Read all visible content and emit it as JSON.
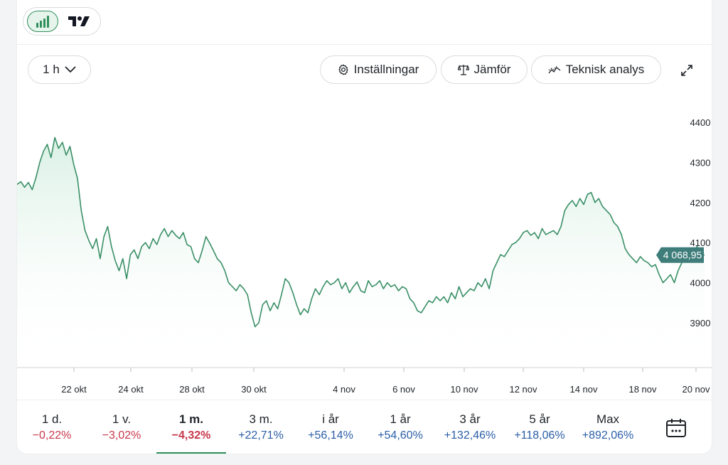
{
  "toolbar": {
    "interval_label": "1 h",
    "settings_label": "Inställningar",
    "compare_label": "Jämför",
    "technical_label": "Teknisk analys"
  },
  "chart_data": {
    "type": "line",
    "x_labels": [
      "22 okt",
      "24 okt",
      "28 okt",
      "30 okt",
      "4 nov",
      "6 nov",
      "10 nov",
      "12 nov",
      "14 nov",
      "18 nov",
      "20 nov"
    ],
    "y_ticks": [
      3900,
      4000,
      4100,
      4200,
      4300,
      4400
    ],
    "ylim": [
      3860,
      4420
    ],
    "current_value": 4068.95,
    "current_label": "4 068,95",
    "line_color": "#3a8f67",
    "values": [
      4245,
      4252,
      4238,
      4250,
      4232,
      4262,
      4300,
      4328,
      4345,
      4312,
      4362,
      4335,
      4350,
      4318,
      4340,
      4295,
      4260,
      4180,
      4130,
      4105,
      4085,
      4110,
      4060,
      4115,
      4140,
      4090,
      4055,
      4030,
      4060,
      4010,
      4070,
      4082,
      4060,
      4090,
      4100,
      4085,
      4110,
      4095,
      4120,
      4135,
      4115,
      4130,
      4118,
      4110,
      4125,
      4095,
      4090,
      4060,
      4050,
      4080,
      4115,
      4098,
      4080,
      4060,
      4050,
      4030,
      4000,
      3990,
      3980,
      3995,
      3985,
      3970,
      3925,
      3890,
      3900,
      3945,
      3955,
      3930,
      3950,
      3935,
      3970,
      4010,
      4000,
      3975,
      3945,
      3920,
      3935,
      3925,
      3960,
      3985,
      3970,
      3990,
      4005,
      3995,
      4000,
      4010,
      3985,
      4000,
      3975,
      3990,
      4002,
      3980,
      3975,
      4005,
      3990,
      3995,
      4005,
      3985,
      4000,
      3990,
      3995,
      3980,
      3990,
      3985,
      3960,
      3950,
      3930,
      3925,
      3940,
      3955,
      3950,
      3965,
      3955,
      3965,
      3950,
      3975,
      3960,
      3990,
      3965,
      3975,
      3985,
      3980,
      4000,
      3990,
      4010,
      3985,
      4030,
      4050,
      4070,
      4065,
      4080,
      4095,
      4100,
      4110,
      4125,
      4130,
      4118,
      4125,
      4110,
      4135,
      4120,
      4125,
      4130,
      4120,
      4140,
      4180,
      4195,
      4205,
      4190,
      4210,
      4195,
      4220,
      4225,
      4200,
      4210,
      4190,
      4180,
      4170,
      4150,
      4140,
      4120,
      4085,
      4070,
      4060,
      4050,
      4065,
      4055,
      4050,
      4040,
      4045,
      4020,
      4000,
      4010,
      4020,
      4000,
      4030,
      4050,
      4060,
      4080,
      4075,
      4090,
      4070,
      4068.95
    ],
    "ytick_x": 961,
    "line": "green"
  },
  "tabs": [
    {
      "label": "1 d.",
      "change": "−0,22%",
      "sign": "neg"
    },
    {
      "label": "1 v.",
      "change": "−3,02%",
      "sign": "neg"
    },
    {
      "label": "1 m.",
      "change": "−4,32%",
      "sign": "neg",
      "active": true
    },
    {
      "label": "3 m.",
      "change": "+22,71%",
      "sign": "pos"
    },
    {
      "label": "i år",
      "change": "+56,14%",
      "sign": "pos"
    },
    {
      "label": "1 år",
      "change": "+54,60%",
      "sign": "pos"
    },
    {
      "label": "3 år",
      "change": "+132,46%",
      "sign": "pos"
    },
    {
      "label": "5 år",
      "change": "+118,06%",
      "sign": "pos"
    },
    {
      "label": "Max",
      "change": "+892,06%",
      "sign": "pos"
    }
  ],
  "icons": {
    "chart_toggle": "bar-chart-icon",
    "tradingview": "tradingview-logo-icon",
    "interval_chevron": "chevron-down-icon",
    "settings": "gear-icon",
    "compare": "scale-icon",
    "technical": "indicator-line-icon",
    "fullscreen": "expand-icon",
    "calendar": "calendar-icon"
  }
}
